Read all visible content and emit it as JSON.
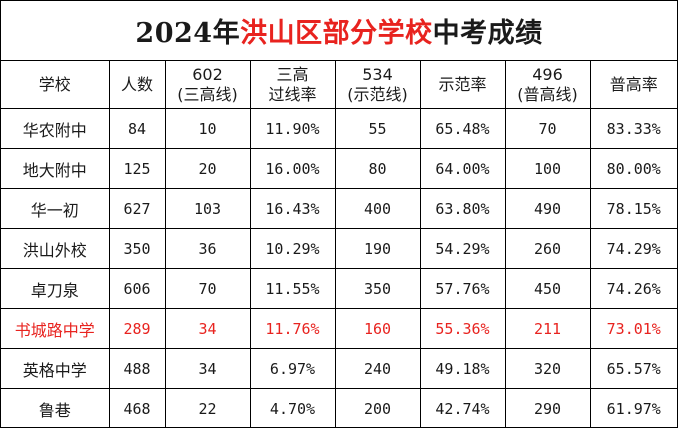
{
  "title": {
    "prefix": "2024年",
    "highlight": "洪山区部分学校",
    "suffix": "中考成绩"
  },
  "colors": {
    "highlight": "#e8231f",
    "text": "#1a1a1a",
    "border": "#000000"
  },
  "headers": [
    {
      "lines": [
        "学校"
      ]
    },
    {
      "lines": [
        "人数"
      ]
    },
    {
      "lines": [
        "602",
        "(三高线)"
      ]
    },
    {
      "lines": [
        "三高",
        "过线率"
      ]
    },
    {
      "lines": [
        "534",
        "(示范线)"
      ]
    },
    {
      "lines": [
        "示范率"
      ]
    },
    {
      "lines": [
        "496",
        "(普高线)"
      ]
    },
    {
      "lines": [
        "普高率"
      ]
    }
  ],
  "rows": [
    {
      "school": "华农附中",
      "count": "84",
      "line602": "10",
      "rate602": "11.90%",
      "line534": "55",
      "rate534": "65.48%",
      "line496": "70",
      "rate496": "83.33%",
      "highlight": false
    },
    {
      "school": "地大附中",
      "count": "125",
      "line602": "20",
      "rate602": "16.00%",
      "line534": "80",
      "rate534": "64.00%",
      "line496": "100",
      "rate496": "80.00%",
      "highlight": false
    },
    {
      "school": "华一初",
      "count": "627",
      "line602": "103",
      "rate602": "16.43%",
      "line534": "400",
      "rate534": "63.80%",
      "line496": "490",
      "rate496": "78.15%",
      "highlight": false
    },
    {
      "school": "洪山外校",
      "count": "350",
      "line602": "36",
      "rate602": "10.29%",
      "line534": "190",
      "rate534": "54.29%",
      "line496": "260",
      "rate496": "74.29%",
      "highlight": false
    },
    {
      "school": "卓刀泉",
      "count": "606",
      "line602": "70",
      "rate602": "11.55%",
      "line534": "350",
      "rate534": "57.76%",
      "line496": "450",
      "rate496": "74.26%",
      "highlight": false
    },
    {
      "school": "书城路中学",
      "count": "289",
      "line602": "34",
      "rate602": "11.76%",
      "line534": "160",
      "rate534": "55.36%",
      "line496": "211",
      "rate496": "73.01%",
      "highlight": true
    },
    {
      "school": "英格中学",
      "count": "488",
      "line602": "34",
      "rate602": "6.97%",
      "line534": "240",
      "rate534": "49.18%",
      "line496": "320",
      "rate496": "65.57%",
      "highlight": false
    },
    {
      "school": "鲁巷",
      "count": "468",
      "line602": "22",
      "rate602": "4.70%",
      "line534": "200",
      "rate534": "42.74%",
      "line496": "290",
      "rate496": "61.97%",
      "highlight": false
    }
  ]
}
